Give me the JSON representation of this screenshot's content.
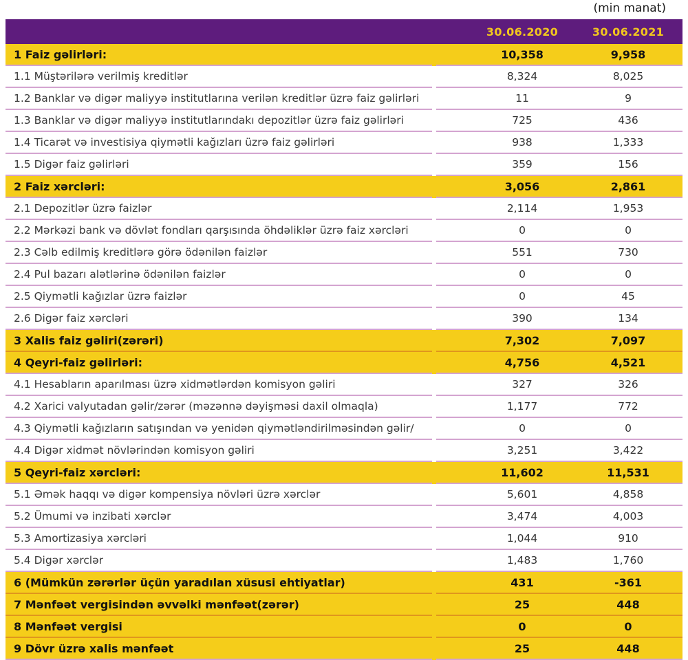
{
  "unit_note": "(min manat)",
  "header": {
    "col1": "30.06.2020",
    "col2": "30.06.2021"
  },
  "colors": {
    "header_purple": "#5e1c7d",
    "section_yellow": "#f5cd1a",
    "header_date_text": "#f2c71e",
    "separator_pink": "#d4a4d0",
    "separator_orange": "#e0961e"
  },
  "rows": [
    {
      "type": "section",
      "label": "1 Faiz gəlirləri:",
      "v2020": "10,358",
      "v2021": "9,958"
    },
    {
      "type": "item",
      "label": "1.1 Müştərilərə verilmiş kreditlər",
      "v2020": "8,324",
      "v2021": "8,025"
    },
    {
      "type": "item",
      "label": "1.2 Banklar və digər maliyyə institutlarına verilən kreditlər üzrə faiz gəlirləri",
      "v2020": "11",
      "v2021": "9"
    },
    {
      "type": "item",
      "label": "1.3 Banklar və digər maliyyə institutlarındakı depozitlər üzrə faiz gəlirləri",
      "v2020": "725",
      "v2021": "436"
    },
    {
      "type": "item",
      "label": "1.4 Ticarət və investisiya qiymətli kağızları üzrə faiz gəlirləri",
      "v2020": "938",
      "v2021": "1,333"
    },
    {
      "type": "item",
      "label": "1.5 Digər faiz gəlirləri",
      "v2020": "359",
      "v2021": "156"
    },
    {
      "type": "section",
      "label": "2 Faiz xərcləri:",
      "v2020": "3,056",
      "v2021": "2,861"
    },
    {
      "type": "item",
      "label": "2.1 Depozitlər üzrə faizlər",
      "v2020": "2,114",
      "v2021": "1,953"
    },
    {
      "type": "item",
      "label": "2.2 Mərkəzi bank və dövlət fondları qarşısında öhdəliklər üzrə faiz xərcləri",
      "v2020": "0",
      "v2021": "0"
    },
    {
      "type": "item",
      "label": "2.3 Cəlb edilmiş kreditlərə görə ödənilən faizlər",
      "v2020": "551",
      "v2021": "730"
    },
    {
      "type": "item",
      "label": "2.4 Pul bazarı alətlərinə ödənilən faizlər",
      "v2020": "0",
      "v2021": "0"
    },
    {
      "type": "item",
      "label": "2.5 Qiymətli kağızlar üzrə faizlər",
      "v2020": "0",
      "v2021": "45"
    },
    {
      "type": "item",
      "label": "2.6 Digər faiz xərcləri",
      "v2020": "390",
      "v2021": "134"
    },
    {
      "type": "section",
      "label": "3 Xalis faiz gəliri(zərəri)",
      "v2020": "7,302",
      "v2021": "7,097"
    },
    {
      "type": "section",
      "label": "4 Qeyri-faiz gəlirləri:",
      "v2020": "4,756",
      "v2021": "4,521"
    },
    {
      "type": "item",
      "label": "4.1 Hesabların aparılması üzrə xidmətlərdən komisyon gəliri",
      "v2020": "327",
      "v2021": "326"
    },
    {
      "type": "item",
      "label": "4.2 Xarici valyutadan gəlir/zərər (məzənnə dəyişməsi daxil olmaqla)",
      "v2020": "1,177",
      "v2021": "772"
    },
    {
      "type": "item",
      "label": "4.3 Qiymətli kağızların satışından və yenidən qiymətləndirilməsindən gəlir/",
      "v2020": "0",
      "v2021": "0"
    },
    {
      "type": "item",
      "label": "4.4 Digər xidmət növlərindən komisyon gəliri",
      "v2020": "3,251",
      "v2021": "3,422"
    },
    {
      "type": "section",
      "label": "5 Qeyri-faiz xərcləri:",
      "v2020": "11,602",
      "v2021": "11,531"
    },
    {
      "type": "item",
      "label": "5.1 Əmək haqqı və digər kompensiya növləri üzrə xərclər",
      "v2020": "5,601",
      "v2021": "4,858"
    },
    {
      "type": "item",
      "label": "5.2 Ümumi və inzibati xərclər",
      "v2020": "3,474",
      "v2021": "4,003"
    },
    {
      "type": "item",
      "label": "5.3 Amortizasiya xərcləri",
      "v2020": "1,044",
      "v2021": "910"
    },
    {
      "type": "item",
      "label": "5.4 Digər xərclər",
      "v2020": "1,483",
      "v2021": "1,760"
    },
    {
      "type": "section",
      "label": "6 (Mümkün zərərlər üçün yaradılan xüsusi ehtiyatlar)",
      "v2020": "431",
      "v2021": "-361"
    },
    {
      "type": "section",
      "label": "7 Mənfəət vergisindən əvvəlki mənfəət(zərər)",
      "v2020": "25",
      "v2021": "448"
    },
    {
      "type": "section",
      "label": "8 Mənfəət vergisi",
      "v2020": "0",
      "v2021": "0"
    },
    {
      "type": "section",
      "label": "9 Dövr üzrə xalis mənfəət",
      "v2020": "25",
      "v2021": "448"
    }
  ]
}
